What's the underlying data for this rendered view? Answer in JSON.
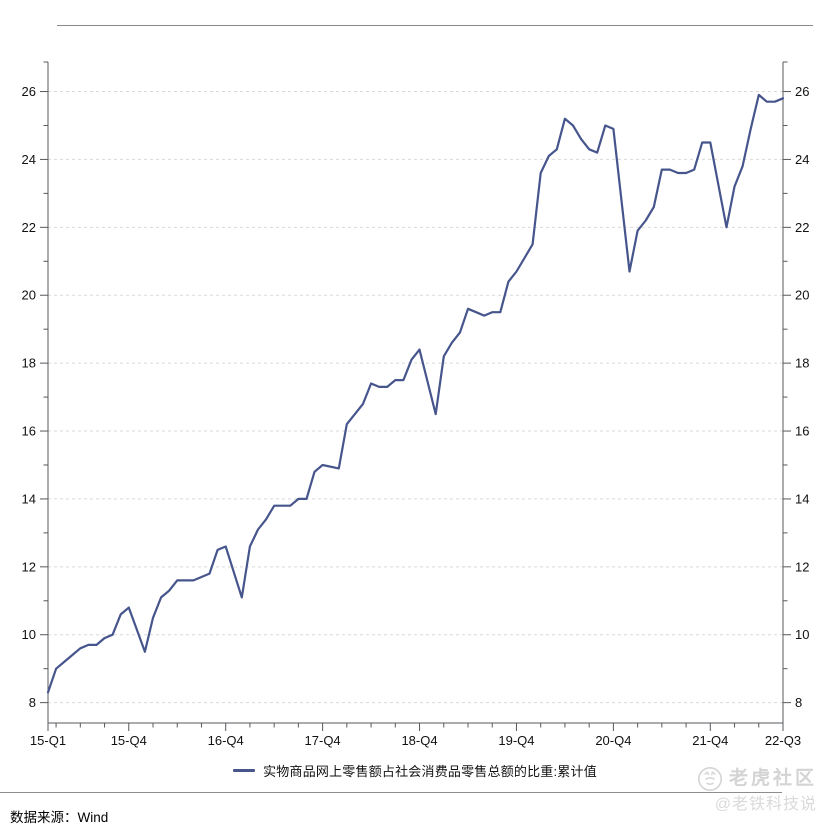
{
  "separator_color": "#8a8a8a",
  "colors": {
    "line": "#46558c",
    "grid": "#d9d9d9",
    "axis": "#57585c",
    "tick_label": "#111111",
    "watermark": "#d4d4d4"
  },
  "legend": {
    "label": "实物商品网上零售额占社会消费品零售总额的比重:累计值"
  },
  "footer": {
    "source_label": "数据来源：Wind"
  },
  "watermark": {
    "community": "老虎社区",
    "handle": "@老铁科技说"
  },
  "chart_data": {
    "type": "line",
    "title": "",
    "xlabel": "",
    "ylabel": "",
    "grid": "horizontal-dashed",
    "legend_position": "bottom-center",
    "ylim": [
      7.4,
      26.87
    ],
    "y_ticks": [
      8,
      10,
      12,
      14,
      16,
      18,
      20,
      22,
      24,
      26
    ],
    "y_minor_ticks": [
      9,
      11,
      13,
      15,
      17,
      19,
      21,
      23,
      25
    ],
    "x_ticks": [
      {
        "label": "15-Q1",
        "month": "2015-02"
      },
      {
        "label": "15-Q4",
        "month": "2015-12"
      },
      {
        "label": "16-Q4",
        "month": "2016-12"
      },
      {
        "label": "17-Q4",
        "month": "2017-12"
      },
      {
        "label": "18-Q4",
        "month": "2018-12"
      },
      {
        "label": "19-Q4",
        "month": "2019-12"
      },
      {
        "label": "20-Q4",
        "month": "2020-12"
      },
      {
        "label": "21-Q4",
        "month": "2021-12"
      },
      {
        "label": "22-Q3",
        "month": "2022-09"
      }
    ],
    "x_minor_ticks": [
      "2015-03",
      "2015-06",
      "2015-09",
      "2016-03",
      "2016-06",
      "2016-09",
      "2017-03",
      "2017-06",
      "2017-09",
      "2018-03",
      "2018-06",
      "2018-09",
      "2019-03",
      "2019-06",
      "2019-09",
      "2020-03",
      "2020-06",
      "2020-09",
      "2021-03",
      "2021-06",
      "2021-09",
      "2022-03",
      "2022-06"
    ],
    "series": [
      {
        "name": "实物商品网上零售额占社会消费品零售总额的比重:累计值",
        "unit": "%",
        "points": [
          [
            "2015-02",
            8.3
          ],
          [
            "2015-03",
            9.0
          ],
          [
            "2015-04",
            9.2
          ],
          [
            "2015-05",
            9.4
          ],
          [
            "2015-06",
            9.6
          ],
          [
            "2015-07",
            9.7
          ],
          [
            "2015-08",
            9.7
          ],
          [
            "2015-09",
            9.9
          ],
          [
            "2015-10",
            10.0
          ],
          [
            "2015-11",
            10.6
          ],
          [
            "2015-12",
            10.8
          ],
          [
            "2016-02",
            9.5
          ],
          [
            "2016-03",
            10.5
          ],
          [
            "2016-04",
            11.1
          ],
          [
            "2016-05",
            11.3
          ],
          [
            "2016-06",
            11.6
          ],
          [
            "2016-07",
            11.6
          ],
          [
            "2016-08",
            11.6
          ],
          [
            "2016-09",
            11.7
          ],
          [
            "2016-10",
            11.8
          ],
          [
            "2016-11",
            12.5
          ],
          [
            "2016-12",
            12.6
          ],
          [
            "2017-02",
            11.1
          ],
          [
            "2017-03",
            12.6
          ],
          [
            "2017-04",
            13.1
          ],
          [
            "2017-05",
            13.4
          ],
          [
            "2017-06",
            13.8
          ],
          [
            "2017-07",
            13.8
          ],
          [
            "2017-08",
            13.8
          ],
          [
            "2017-09",
            14.0
          ],
          [
            "2017-10",
            14.0
          ],
          [
            "2017-11",
            14.8
          ],
          [
            "2017-12",
            15.0
          ],
          [
            "2018-02",
            14.9
          ],
          [
            "2018-03",
            16.2
          ],
          [
            "2018-04",
            16.5
          ],
          [
            "2018-05",
            16.8
          ],
          [
            "2018-06",
            17.4
          ],
          [
            "2018-07",
            17.3
          ],
          [
            "2018-08",
            17.3
          ],
          [
            "2018-09",
            17.5
          ],
          [
            "2018-10",
            17.5
          ],
          [
            "2018-11",
            18.1
          ],
          [
            "2018-12",
            18.4
          ],
          [
            "2019-02",
            16.5
          ],
          [
            "2019-03",
            18.2
          ],
          [
            "2019-04",
            18.6
          ],
          [
            "2019-05",
            18.9
          ],
          [
            "2019-06",
            19.6
          ],
          [
            "2019-07",
            19.5
          ],
          [
            "2019-08",
            19.4
          ],
          [
            "2019-09",
            19.5
          ],
          [
            "2019-10",
            19.5
          ],
          [
            "2019-11",
            20.4
          ],
          [
            "2019-12",
            20.7
          ],
          [
            "2020-02",
            21.5
          ],
          [
            "2020-03",
            23.6
          ],
          [
            "2020-04",
            24.1
          ],
          [
            "2020-05",
            24.3
          ],
          [
            "2020-06",
            25.2
          ],
          [
            "2020-07",
            25.0
          ],
          [
            "2020-08",
            24.6
          ],
          [
            "2020-09",
            24.3
          ],
          [
            "2020-10",
            24.2
          ],
          [
            "2020-11",
            25.0
          ],
          [
            "2020-12",
            24.9
          ],
          [
            "2021-02",
            20.7
          ],
          [
            "2021-03",
            21.9
          ],
          [
            "2021-04",
            22.2
          ],
          [
            "2021-05",
            22.6
          ],
          [
            "2021-06",
            23.7
          ],
          [
            "2021-07",
            23.7
          ],
          [
            "2021-08",
            23.6
          ],
          [
            "2021-09",
            23.6
          ],
          [
            "2021-10",
            23.7
          ],
          [
            "2021-11",
            24.5
          ],
          [
            "2021-12",
            24.5
          ],
          [
            "2022-02",
            22.0
          ],
          [
            "2022-03",
            23.2
          ],
          [
            "2022-04",
            23.8
          ],
          [
            "2022-05",
            24.9
          ],
          [
            "2022-06",
            25.9
          ],
          [
            "2022-07",
            25.7
          ],
          [
            "2022-08",
            25.7
          ],
          [
            "2022-09",
            25.8
          ]
        ]
      }
    ]
  }
}
